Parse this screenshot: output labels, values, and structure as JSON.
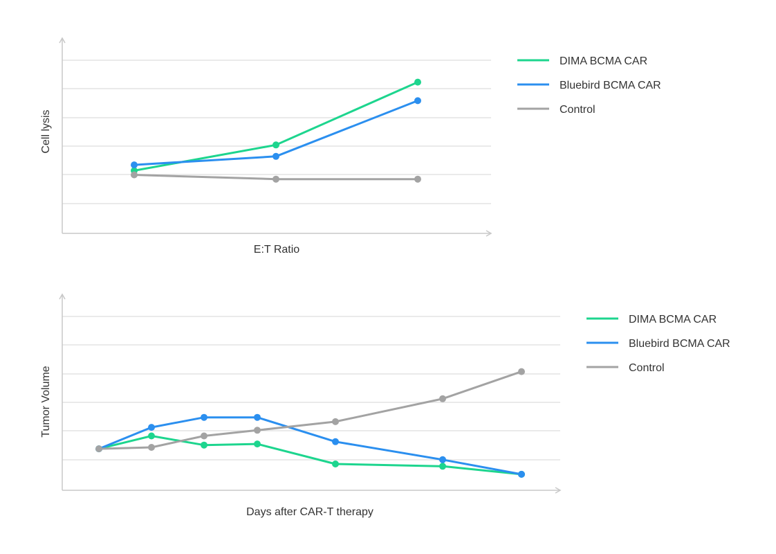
{
  "chart_data": [
    {
      "type": "line",
      "xlabel": "E:T Ratio",
      "ylabel": "Cell lysis",
      "x": [
        1,
        2,
        3
      ],
      "ylim": [
        0,
        6.5
      ],
      "grid": true,
      "legend_position": "right",
      "series": [
        {
          "name": "DIMA BCMA CAR",
          "color": "#1dd58e",
          "values": [
            2.2,
            3.1,
            5.3
          ]
        },
        {
          "name": "Bluebird BCMA CAR",
          "color": "#2b8fef",
          "values": [
            2.4,
            2.7,
            4.65
          ]
        },
        {
          "name": "Control",
          "color": "#a3a3a3",
          "values": [
            2.05,
            1.9,
            1.9
          ]
        }
      ]
    },
    {
      "type": "line",
      "xlabel": "Days after CAR-T therapy",
      "ylabel": "Tumor Volume",
      "x": [
        1,
        2,
        3,
        4,
        5,
        6,
        7
      ],
      "ylim": [
        0,
        6.5
      ],
      "grid": true,
      "legend_position": "right",
      "series": [
        {
          "name": "DIMA BCMA CAR",
          "color": "#1dd58e",
          "values": [
            1.45,
            1.9,
            1.58,
            1.62,
            0.92,
            0.84,
            0.56
          ]
        },
        {
          "name": "Bluebird BCMA CAR",
          "color": "#2b8fef",
          "values": [
            1.45,
            2.2,
            2.55,
            2.55,
            1.7,
            1.07,
            0.56
          ]
        },
        {
          "name": "Control",
          "color": "#a3a3a3",
          "values": [
            1.45,
            1.5,
            1.9,
            2.1,
            2.4,
            3.2,
            4.15
          ]
        }
      ]
    }
  ]
}
